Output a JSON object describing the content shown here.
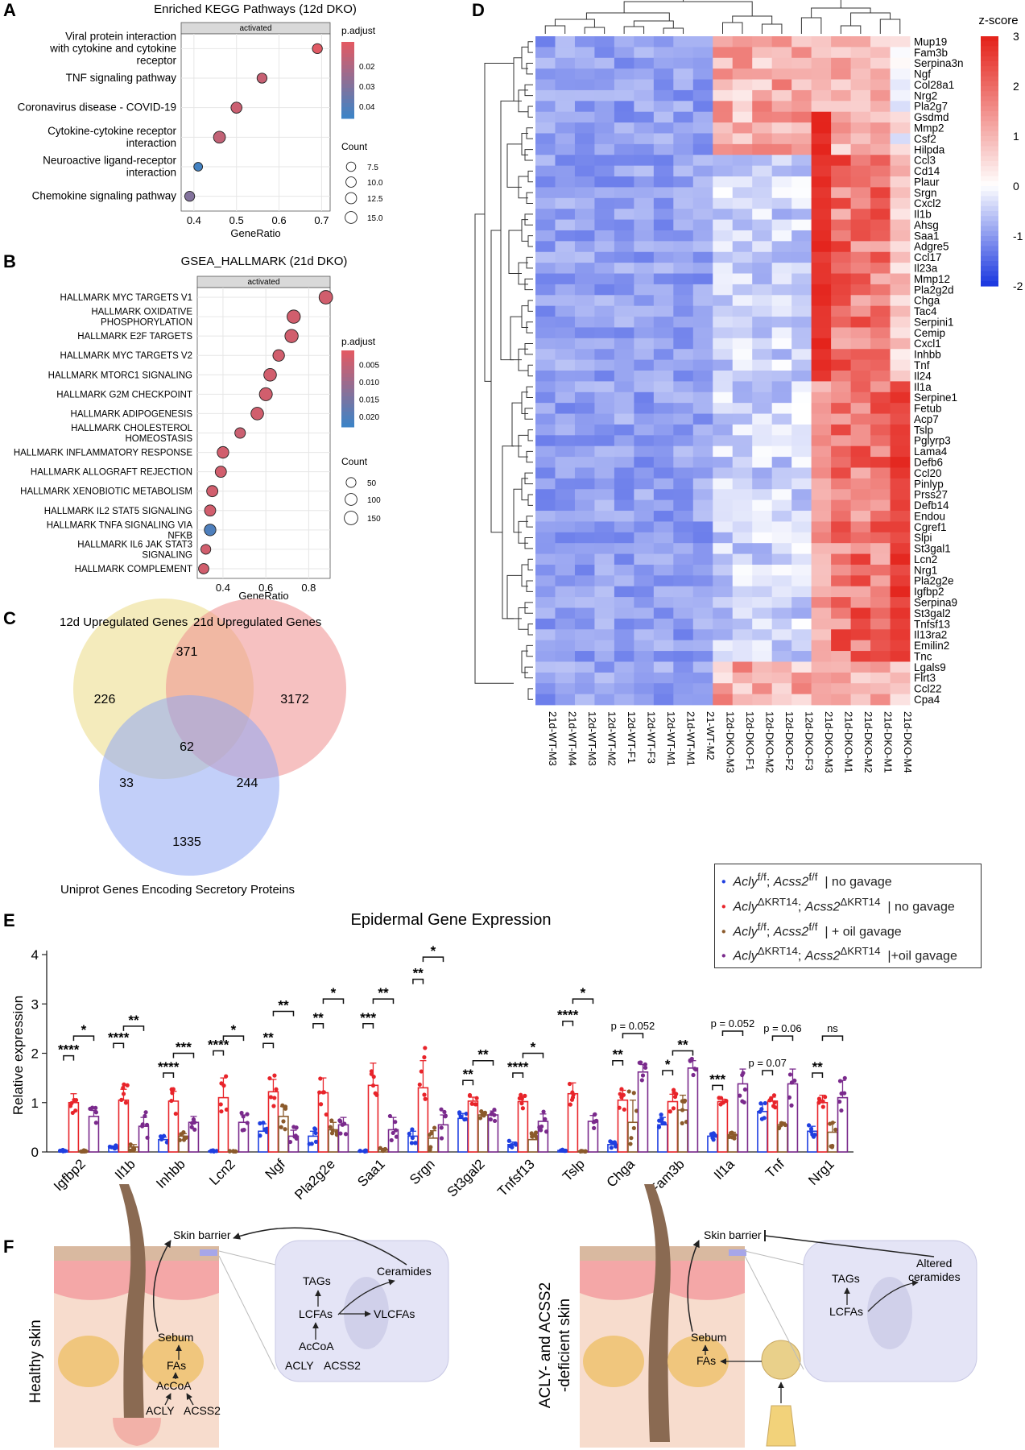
{
  "panels": {
    "a": "A",
    "b": "B",
    "c": "C",
    "d": "D",
    "e": "E",
    "f": "F"
  },
  "chart_data": [
    {
      "type": "scatter",
      "title": "Enriched KEGG Pathways (12d DKO)",
      "strip": "activated",
      "xlabel": "GeneRatio",
      "xlim": [
        0.37,
        0.72
      ],
      "xticks": [
        0.4,
        0.5,
        0.6,
        0.7
      ],
      "xtick_labels": [
        "0.4",
        "0.5",
        "0.6",
        "0.7"
      ],
      "categories": [
        "Viral protein interaction with cytokine and cytokine receptor",
        "TNF signaling pathway",
        "Coronavirus disease - COVID-19",
        "Cytokine-cytokine receptor interaction",
        "Neuroactive ligand-receptor interaction",
        "Chemokine signaling pathway"
      ],
      "category_lines": [
        [
          "Viral protein interaction",
          "with cytokine and cytokine",
          "receptor"
        ],
        [
          "TNF signaling pathway"
        ],
        [
          "Coronavirus disease - COVID-19"
        ],
        [
          "Cytokine-cytokine receptor",
          "interaction"
        ],
        [
          "Neuroactive ligand-receptor",
          "interaction"
        ],
        [
          "Chemokine signaling pathway"
        ]
      ],
      "gene_ratio": [
        0.69,
        0.56,
        0.5,
        0.46,
        0.41,
        0.39
      ],
      "count": [
        9,
        9,
        12,
        15,
        6,
        9
      ],
      "p_adjust": [
        0.008,
        0.014,
        0.013,
        0.015,
        0.045,
        0.03
      ],
      "color_legend": {
        "title": "p.adjust",
        "ticks": [
          0.02,
          0.03,
          0.04
        ],
        "tick_labels": [
          "0.02",
          "0.03",
          "0.04"
        ],
        "range": [
          0.008,
          0.046
        ]
      },
      "size_legend": {
        "title": "Count",
        "values": [
          7.5,
          10.0,
          12.5,
          15.0
        ],
        "labels": [
          "7.5",
          "10.0",
          "12.5",
          "15.0"
        ]
      }
    },
    {
      "type": "scatter",
      "title": "GSEA_HALLMARK (21d DKO)",
      "strip": "activated",
      "xlabel": "GeneRatio",
      "xlim": [
        0.28,
        0.9
      ],
      "xticks": [
        0.4,
        0.6,
        0.8
      ],
      "xtick_labels": [
        "0.4",
        "0.6",
        "0.8"
      ],
      "categories": [
        "HALLMARK MYC TARGETS V1",
        "HALLMARK OXIDATIVE PHOSPHORYLATION",
        "HALLMARK E2F TARGETS",
        "HALLMARK MYC TARGETS V2",
        "HALLMARK MTORC1 SIGNALING",
        "HALLMARK G2M CHECKPOINT",
        "HALLMARK ADIPOGENESIS",
        "HALLMARK CHOLESTEROL HOMEOSTASIS",
        "HALLMARK INFLAMMATORY RESPONSE",
        "HALLMARK ALLOGRAFT REJECTION",
        "HALLMARK XENOBIOTIC METABOLISM",
        "HALLMARK IL2 STAT5 SIGNALING",
        "HALLMARK TNFA SIGNALING VIA NFKB",
        "HALLMARK IL6 JAK STAT3 SIGNALING",
        "HALLMARK COMPLEMENT"
      ],
      "category_lines": [
        [
          "HALLMARK MYC TARGETS V1"
        ],
        [
          "HALLMARK OXIDATIVE",
          "PHOSPHORYLATION"
        ],
        [
          "HALLMARK E2F TARGETS"
        ],
        [
          "HALLMARK MYC TARGETS V2"
        ],
        [
          "HALLMARK MTORC1 SIGNALING"
        ],
        [
          "HALLMARK G2M CHECKPOINT"
        ],
        [
          "HALLMARK ADIPOGENESIS"
        ],
        [
          "HALLMARK CHOLESTEROL",
          "HOMEOSTASIS"
        ],
        [
          "HALLMARK INFLAMMATORY RESPONSE"
        ],
        [
          "HALLMARK ALLOGRAFT REJECTION"
        ],
        [
          "HALLMARK XENOBIOTIC METABOLISM"
        ],
        [
          "HALLMARK IL2 STAT5 SIGNALING"
        ],
        [
          "HALLMARK TNFA SIGNALING VIA",
          "NFKB"
        ],
        [
          "HALLMARK IL6 JAK STAT3",
          "SIGNALING"
        ],
        [
          "HALLMARK COMPLEMENT"
        ]
      ],
      "gene_ratio": [
        0.88,
        0.73,
        0.72,
        0.66,
        0.62,
        0.6,
        0.56,
        0.48,
        0.4,
        0.39,
        0.35,
        0.34,
        0.34,
        0.32,
        0.31
      ],
      "count": [
        150,
        140,
        140,
        90,
        120,
        130,
        120,
        65,
        90,
        80,
        80,
        80,
        90,
        50,
        60
      ],
      "p_adjust": [
        0.003,
        0.003,
        0.003,
        0.003,
        0.003,
        0.003,
        0.003,
        0.004,
        0.003,
        0.003,
        0.003,
        0.003,
        0.021,
        0.003,
        0.003
      ],
      "color_legend": {
        "title": "p.adjust",
        "ticks": [
          0.005,
          0.01,
          0.015,
          0.02
        ],
        "tick_labels": [
          "0.005",
          "0.010",
          "0.015",
          "0.020"
        ],
        "range": [
          0.001,
          0.023
        ]
      },
      "size_legend": {
        "title": "Count",
        "values": [
          50,
          100,
          150
        ],
        "labels": [
          "50",
          "100",
          "150"
        ]
      }
    },
    {
      "type": "venn",
      "sets": [
        "12d Upregulated Genes",
        "21d Upregulated Genes",
        "Uniprot Genes Encoding Secretory Proteins"
      ],
      "regions": {
        "only_12d": 226,
        "d12_d21": 371,
        "only_21d": 3172,
        "all_three": 62,
        "d12_uniprot": 33,
        "d21_uniprot": 244,
        "only_uniprot": 1335
      },
      "colors": [
        "#efe3a0",
        "#ef8e8e",
        "#90a8f4"
      ]
    },
    {
      "type": "heatmap",
      "title": "z-score",
      "color_scale": {
        "min": -2,
        "max": 3,
        "ticks": [
          3,
          2,
          1,
          0,
          -1,
          -2
        ],
        "tick_labels": [
          "3",
          "2",
          "1",
          "0",
          "-1",
          "-2"
        ],
        "low": "#1e3ae0",
        "mid": "#ffffff",
        "high": "#e4241c"
      },
      "columns": [
        "21d-WT-M3",
        "21d-WT-M4",
        "12d-WT-M3",
        "12d-WT-M2",
        "12d-WT-F1",
        "12d-WT-F3",
        "12d-WT-M1",
        "21d-WT-M1",
        "21-WT-M2",
        "12d-DKO-M3",
        "12d-DKO-F1",
        "12d-DKO-M2",
        "12d-DKO-F2",
        "12d-DKO-F3",
        "21d-DKO-M3",
        "21d-DKO-M1",
        "21d-DKO-M2",
        "21d-DKO-M1",
        "21d-DKO-M4"
      ],
      "rows": [
        "Mup19",
        "Fam3b",
        "Serpina3n",
        "Ngf",
        "Col28a1",
        "Nrg2",
        "Pla2g7",
        "Gsdmd",
        "Mmp2",
        "Csf2",
        "Hilpda",
        "Ccl3",
        "Cd14",
        "Plaur",
        "Srgn",
        "Cxcl2",
        "Il1b",
        "Ahsg",
        "Saa1",
        "Adgre5",
        "Ccl17",
        "Il23a",
        "Mmp12",
        "Pla2g2d",
        "Chga",
        "Tac4",
        "Serpini1",
        "Cemip",
        "Cxcl1",
        "Inhbb",
        "Tnf",
        "Il24",
        "Il1a",
        "Serpine1",
        "Fetub",
        "Acp7",
        "Tslp",
        "Pglyrp3",
        "Lama4",
        "Defb6",
        "Ccl20",
        "Pinlyp",
        "Prss27",
        "Defb14",
        "Endou",
        "Cgref1",
        "Slpi",
        "St3gal1",
        "Lcn2",
        "Nrg1",
        "Pla2g2e",
        "Igfbp2",
        "Serpina9",
        "St3gal2",
        "Tnfsf13",
        "Il13ra2",
        "Emilin2",
        "Tnc",
        "Lgals9",
        "Flrt3",
        "Ccl22",
        "Cpa4"
      ]
    },
    {
      "type": "bar",
      "title": "Epidermal Gene Expression",
      "ylabel": "Relative expression",
      "ylim": [
        0,
        4
      ],
      "yticks": [
        0,
        1,
        2,
        3,
        4
      ],
      "ytick_labels": [
        "0",
        "1",
        "2",
        "3",
        "4"
      ],
      "categories": [
        "Igfbp2",
        "Il1b",
        "Inhbb",
        "Lcn2",
        "Ngf",
        "Pla2g2e",
        "Saa1",
        "Srgn",
        "St3gal2",
        "Tnfsf13",
        "Tslp",
        "Chga",
        "Fam3b",
        "Il1a",
        "Tnf",
        "Nrg1"
      ],
      "series": [
        {
          "name": "Acly f/f; Acss2 f/f | no gavage",
          "color": "#1f3fe0",
          "values": [
            0.03,
            0.1,
            0.25,
            0.02,
            0.42,
            0.32,
            0.02,
            0.32,
            0.68,
            0.15,
            0.03,
            0.15,
            0.55,
            0.32,
            0.82,
            0.42
          ],
          "errors": [
            0.01,
            0.02,
            0.05,
            0.01,
            0.15,
            0.1,
            0.01,
            0.1,
            0.1,
            0.05,
            0.01,
            0.05,
            0.15,
            0.05,
            0.15,
            0.1
          ]
        },
        {
          "name": "Acly ΔKRT14; Acss2 ΔKRT14 | no gavage",
          "color": "#e8242a",
          "values": [
            1.0,
            1.05,
            1.03,
            1.1,
            1.22,
            1.2,
            1.35,
            1.3,
            1.03,
            1.02,
            1.18,
            1.05,
            1.02,
            1.02,
            1.03,
            1.0
          ],
          "errors": [
            0.18,
            0.22,
            0.2,
            0.4,
            0.25,
            0.3,
            0.45,
            0.55,
            0.08,
            0.1,
            0.22,
            0.2,
            0.15,
            0.05,
            0.08,
            0.15
          ]
        },
        {
          "name": "Acly f/f; Acss2 f/f | + oil gavage",
          "color": "#8b5a2b",
          "values": [
            0.02,
            0.1,
            0.32,
            0.01,
            0.72,
            0.45,
            0.05,
            0.28,
            0.75,
            0.25,
            0.02,
            0.6,
            0.85,
            0.35,
            0.55,
            0.4
          ],
          "errors": [
            0.01,
            0.05,
            0.05,
            0.01,
            0.2,
            0.15,
            0.02,
            0.15,
            0.05,
            0.1,
            0.01,
            0.45,
            0.3,
            0.05,
            0.05,
            0.2
          ]
        },
        {
          "name": "Acly ΔKRT14; Acss2 ΔKRT14 | +oil gavage",
          "color": "#7a2a8c",
          "values": [
            0.72,
            0.52,
            0.6,
            0.6,
            0.32,
            0.55,
            0.45,
            0.55,
            0.75,
            0.62,
            0.62,
            1.62,
            1.7,
            1.38,
            1.38,
            1.1
          ],
          "errors": [
            0.12,
            0.18,
            0.12,
            0.15,
            0.12,
            0.15,
            0.25,
            0.2,
            0.08,
            0.15,
            0.12,
            0.15,
            0.15,
            0.3,
            0.3,
            0.35
          ]
        }
      ],
      "significance": [
        {
          "gene": "Igfbp2",
          "a": 0,
          "b": 1,
          "y": 1.95,
          "label": "****"
        },
        {
          "gene": "Igfbp2",
          "a": 1,
          "b": 3,
          "y": 2.35,
          "label": "*"
        },
        {
          "gene": "Il1b",
          "a": 0,
          "b": 1,
          "y": 2.2,
          "label": "****"
        },
        {
          "gene": "Il1b",
          "a": 1,
          "b": 3,
          "y": 2.55,
          "label": "**"
        },
        {
          "gene": "Inhbb",
          "a": 0,
          "b": 1,
          "y": 1.6,
          "label": "****"
        },
        {
          "gene": "Inhbb",
          "a": 1,
          "b": 3,
          "y": 2.0,
          "label": "***"
        },
        {
          "gene": "Lcn2",
          "a": 0,
          "b": 1,
          "y": 2.05,
          "label": "****"
        },
        {
          "gene": "Lcn2",
          "a": 1,
          "b": 3,
          "y": 2.35,
          "label": "*"
        },
        {
          "gene": "Ngf",
          "a": 0,
          "b": 1,
          "y": 2.2,
          "label": "**"
        },
        {
          "gene": "Ngf",
          "a": 1,
          "b": 3,
          "y": 2.85,
          "label": "**"
        },
        {
          "gene": "Pla2g2e",
          "a": 0,
          "b": 1,
          "y": 2.6,
          "label": "**"
        },
        {
          "gene": "Pla2g2e",
          "a": 1,
          "b": 3,
          "y": 3.1,
          "label": "*"
        },
        {
          "gene": "Saa1",
          "a": 0,
          "b": 1,
          "y": 2.6,
          "label": "***"
        },
        {
          "gene": "Saa1",
          "a": 1,
          "b": 3,
          "y": 3.1,
          "label": "**"
        },
        {
          "gene": "Srgn",
          "a": 0,
          "b": 1,
          "y": 3.5,
          "label": "**"
        },
        {
          "gene": "Srgn",
          "a": 1,
          "b": 3,
          "y": 3.95,
          "label": "*"
        },
        {
          "gene": "St3gal2",
          "a": 0,
          "b": 1,
          "y": 1.45,
          "label": "**"
        },
        {
          "gene": "St3gal2",
          "a": 1,
          "b": 3,
          "y": 1.85,
          "label": "**"
        },
        {
          "gene": "Tnfsf13",
          "a": 0,
          "b": 1,
          "y": 1.6,
          "label": "****"
        },
        {
          "gene": "Tnfsf13",
          "a": 1,
          "b": 3,
          "y": 2.0,
          "label": "*"
        },
        {
          "gene": "Tslp",
          "a": 0,
          "b": 1,
          "y": 2.65,
          "label": "****"
        },
        {
          "gene": "Tslp",
          "a": 1,
          "b": 3,
          "y": 3.1,
          "label": "*"
        },
        {
          "gene": "Chga",
          "a": 0,
          "b": 1,
          "y": 1.85,
          "label": "**"
        },
        {
          "gene": "Chga",
          "a": 1,
          "b": 3,
          "y": 2.4,
          "label": "p = 0.052"
        },
        {
          "gene": "Fam3b",
          "a": 0,
          "b": 1,
          "y": 1.65,
          "label": "*"
        },
        {
          "gene": "Fam3b",
          "a": 1,
          "b": 3,
          "y": 2.05,
          "label": "**"
        },
        {
          "gene": "Il1a",
          "a": 0,
          "b": 1,
          "y": 1.35,
          "label": "***"
        },
        {
          "gene": "Il1a",
          "a": 1,
          "b": 3,
          "y": 2.45,
          "label": "p = 0.052"
        },
        {
          "gene": "Tnf",
          "a": 0,
          "b": 1,
          "y": 1.65,
          "label": "p = 0.07"
        },
        {
          "gene": "Tnf",
          "a": 1,
          "b": 3,
          "y": 2.35,
          "label": "p = 0.06"
        },
        {
          "gene": "Nrg1",
          "a": 0,
          "b": 1,
          "y": 1.6,
          "label": "**"
        },
        {
          "gene": "Nrg1",
          "a": 1,
          "b": 3,
          "y": 2.35,
          "label": "ns"
        }
      ]
    }
  ],
  "legend_e": [
    {
      "gene1": "Acly",
      "sup1": "f/f",
      "gene2": "Acss2",
      "sup2": "f/f",
      "suffix": "| no gavage"
    },
    {
      "gene1": "Acly",
      "sup1": "ΔKRT14",
      "gene2": "Acss2",
      "sup2": "ΔKRT14",
      "suffix": "| no gavage"
    },
    {
      "gene1": "Acly",
      "sup1": "f/f",
      "gene2": "Acss2",
      "sup2": "f/f",
      "suffix": "| + oil gavage"
    },
    {
      "gene1": "Acly",
      "sup1": "ΔKRT14",
      "gene2": "Acss2",
      "sup2": "ΔKRT14",
      "suffix": "|+oil gavage"
    }
  ],
  "schematic": {
    "healthy": {
      "side_label": "Healthy skin",
      "skin_barrier": "Skin barrier",
      "sebum": "Sebum",
      "fas": "FAs",
      "accoa": "AcCoA",
      "acly": "ACLY",
      "acss2": "ACSS2",
      "tags": "TAGs",
      "lcfas": "LCFAs",
      "vlcfas": "VLCFAs",
      "ceramides": "Ceramides",
      "cell_accoa": "AcCoA",
      "cell_acly": "ACLY",
      "cell_acss2": "ACSS2"
    },
    "deficient": {
      "side_label_1": "ACLY- and ACSS2",
      "side_label_2": "-deficient skin",
      "skin_barrier": "Skin barrier",
      "sebum": "Sebum",
      "fas": "FAs",
      "tags": "TAGs",
      "lcfas": "LCFAs",
      "altered_1": "Altered",
      "altered_2": "ceramides"
    }
  }
}
